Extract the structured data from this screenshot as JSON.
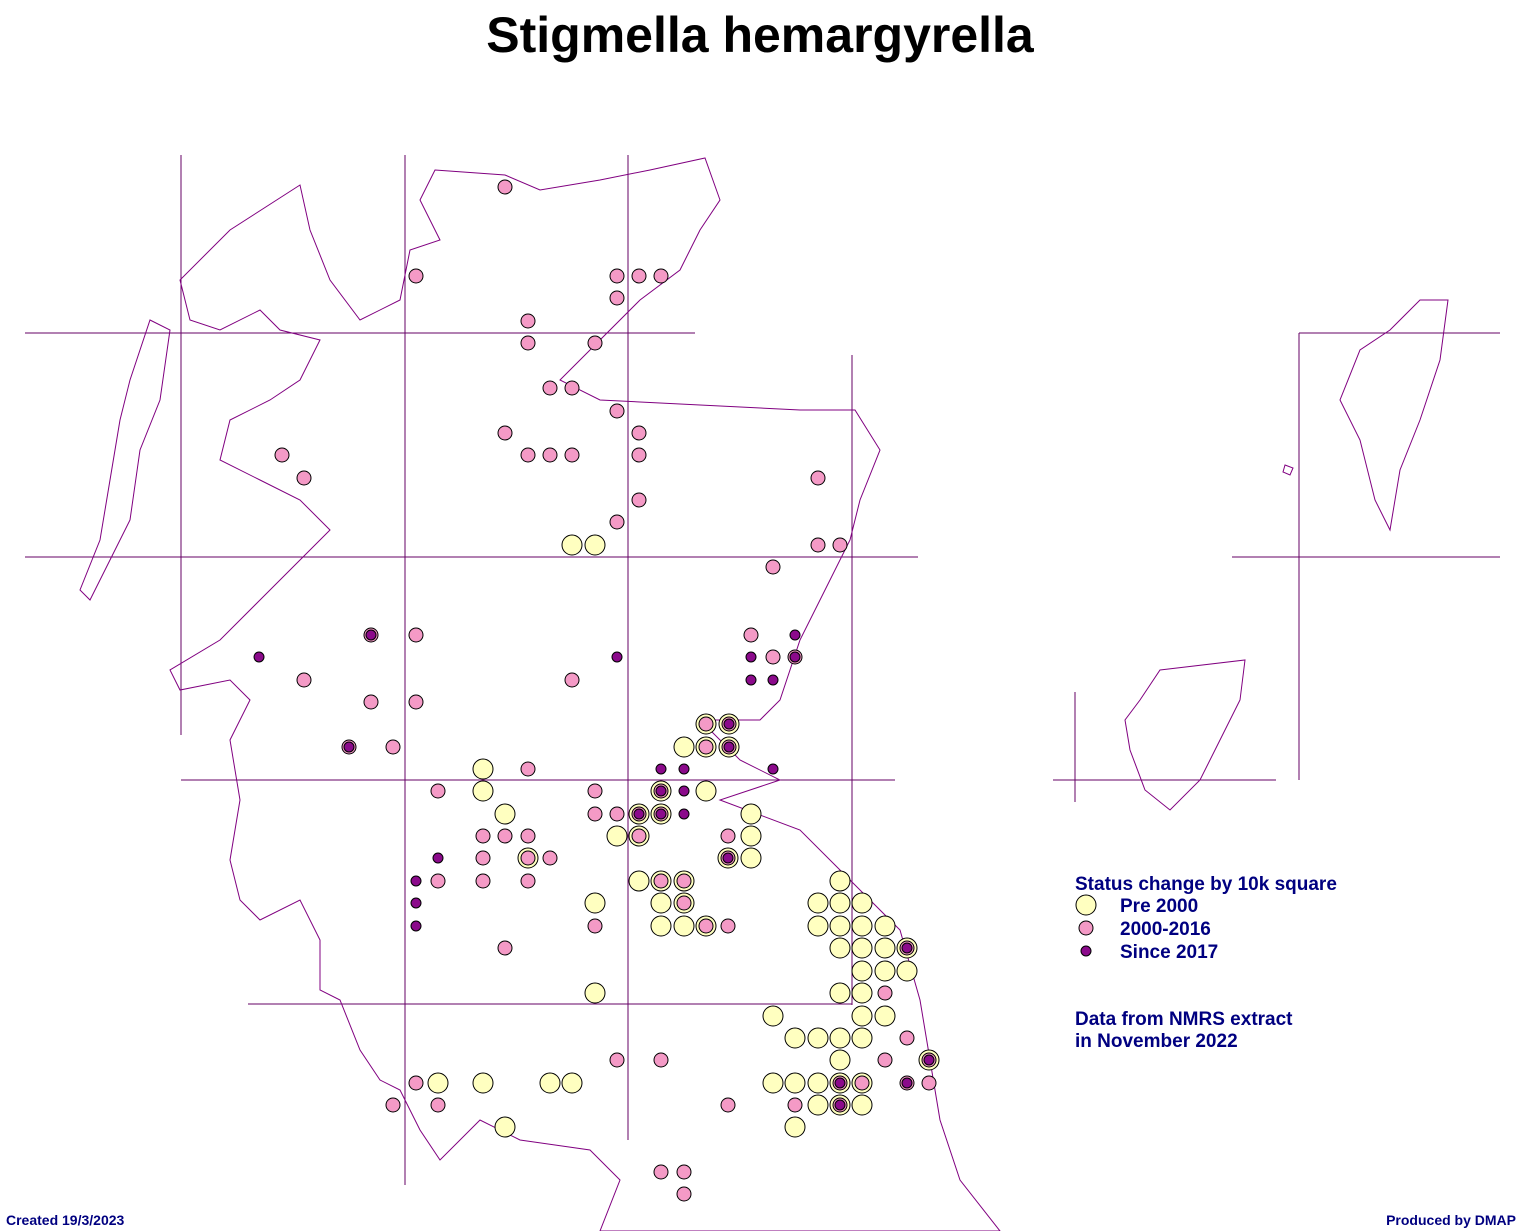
{
  "header": {
    "title": "Stigmella hemargyrella"
  },
  "legend": {
    "title": "Status change by 10k square",
    "items": [
      {
        "label": "Pre 2000",
        "color": "#ffffc0"
      },
      {
        "label": "2000-2016",
        "color": "#f49ac6"
      },
      {
        "label": "Since 2017",
        "color": "#8b0a8b"
      }
    ]
  },
  "note": {
    "lines": [
      "Data from NMRS extract",
      "in November 2022"
    ]
  },
  "footer": {
    "left": "Created 19/3/2023",
    "right": "Produced by DMAP"
  }
}
